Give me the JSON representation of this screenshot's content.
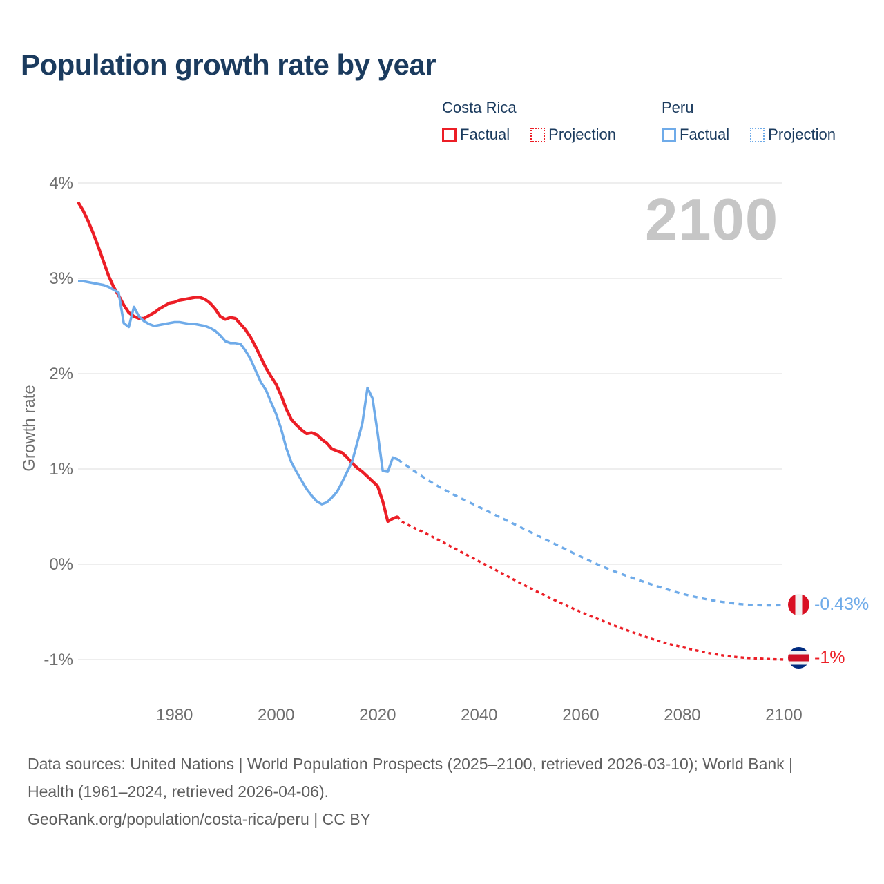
{
  "title": "Population growth rate by year",
  "watermark": "2100",
  "colors": {
    "costa_rica_red": "#ec1e26",
    "peru_blue": "#6fabe9",
    "title_navy": "#1b3b5e",
    "axis_gray": "#6f6f6f",
    "gridline": "#e9e9e9",
    "watermark_gray": "#c6c6c6",
    "footer_gray": "#5e5e5e"
  },
  "legend": {
    "groups": [
      {
        "name": "Costa Rica",
        "color": "#ec1e26",
        "items": [
          {
            "label": "Factual",
            "style": "solid"
          },
          {
            "label": "Projection",
            "style": "dotted"
          }
        ]
      },
      {
        "name": "Peru",
        "color": "#6fabe9",
        "items": [
          {
            "label": "Factual",
            "style": "solid"
          },
          {
            "label": "Projection",
            "style": "dotted"
          }
        ]
      }
    ]
  },
  "footer": {
    "sources": "Data sources: United Nations | World Population Prospects (2025–2100, retrieved 2026-03-10); World Bank | Health (1961–2024, retrieved 2026-04-06).",
    "attribution": "GeoRank.org/population/costa-rica/peru | CC BY"
  },
  "chart_data": {
    "type": "line",
    "title": "Population growth rate by year",
    "xlabel": "",
    "ylabel": "Growth rate",
    "xlim": [
      1961,
      2100
    ],
    "ylim": [
      -1,
      4
    ],
    "grid": "horizontal",
    "legend_position": "top-right",
    "y_ticks": [
      {
        "v": 4,
        "label": "4%"
      },
      {
        "v": 3,
        "label": "3%"
      },
      {
        "v": 2,
        "label": "2%"
      },
      {
        "v": 1,
        "label": "1%"
      },
      {
        "v": 0,
        "label": "0%"
      },
      {
        "v": -1,
        "label": "-1%"
      }
    ],
    "x_ticks": [
      {
        "v": 1980,
        "label": "1980"
      },
      {
        "v": 2000,
        "label": "2000"
      },
      {
        "v": 2020,
        "label": "2020"
      },
      {
        "v": 2040,
        "label": "2040"
      },
      {
        "v": 2060,
        "label": "2060"
      },
      {
        "v": 2080,
        "label": "2080"
      },
      {
        "v": 2100,
        "label": "2100"
      }
    ],
    "series": [
      {
        "id": "costa-rica-factual",
        "name": "Costa Rica Factual",
        "style": "solid",
        "color": "#ec1e26",
        "width": 4.4,
        "points": [
          [
            1961,
            3.8
          ],
          [
            1962,
            3.71
          ],
          [
            1963,
            3.6
          ],
          [
            1964,
            3.47
          ],
          [
            1965,
            3.33
          ],
          [
            1966,
            3.18
          ],
          [
            1967,
            3.03
          ],
          [
            1968,
            2.91
          ],
          [
            1969,
            2.82
          ],
          [
            1970,
            2.72
          ],
          [
            1971,
            2.64
          ],
          [
            1972,
            2.6
          ],
          [
            1973,
            2.58
          ],
          [
            1974,
            2.58
          ],
          [
            1975,
            2.61
          ],
          [
            1976,
            2.64
          ],
          [
            1977,
            2.68
          ],
          [
            1978,
            2.71
          ],
          [
            1979,
            2.74
          ],
          [
            1980,
            2.75
          ],
          [
            1981,
            2.77
          ],
          [
            1982,
            2.78
          ],
          [
            1983,
            2.79
          ],
          [
            1984,
            2.8
          ],
          [
            1985,
            2.8
          ],
          [
            1986,
            2.78
          ],
          [
            1987,
            2.74
          ],
          [
            1988,
            2.68
          ],
          [
            1989,
            2.6
          ],
          [
            1990,
            2.57
          ],
          [
            1991,
            2.59
          ],
          [
            1992,
            2.58
          ],
          [
            1993,
            2.52
          ],
          [
            1994,
            2.46
          ],
          [
            1995,
            2.38
          ],
          [
            1996,
            2.28
          ],
          [
            1997,
            2.17
          ],
          [
            1998,
            2.06
          ],
          [
            1999,
            1.97
          ],
          [
            2000,
            1.89
          ],
          [
            2001,
            1.77
          ],
          [
            2002,
            1.63
          ],
          [
            2003,
            1.52
          ],
          [
            2004,
            1.46
          ],
          [
            2005,
            1.41
          ],
          [
            2006,
            1.37
          ],
          [
            2007,
            1.38
          ],
          [
            2008,
            1.36
          ],
          [
            2009,
            1.31
          ],
          [
            2010,
            1.27
          ],
          [
            2011,
            1.21
          ],
          [
            2012,
            1.19
          ],
          [
            2013,
            1.17
          ],
          [
            2014,
            1.12
          ],
          [
            2015,
            1.06
          ],
          [
            2016,
            1.01
          ],
          [
            2017,
            0.97
          ],
          [
            2018,
            0.92
          ],
          [
            2019,
            0.87
          ],
          [
            2020,
            0.82
          ],
          [
            2021,
            0.66
          ],
          [
            2022,
            0.45
          ],
          [
            2023,
            0.48
          ],
          [
            2024,
            0.5
          ]
        ]
      },
      {
        "id": "costa-rica-projection",
        "name": "Costa Rica Projection",
        "style": "dotted",
        "color": "#ec1e26",
        "width": 3.4,
        "points": [
          [
            2025,
            0.44
          ],
          [
            2030,
            0.31
          ],
          [
            2035,
            0.17
          ],
          [
            2040,
            0.03
          ],
          [
            2045,
            -0.11
          ],
          [
            2050,
            -0.25
          ],
          [
            2055,
            -0.38
          ],
          [
            2060,
            -0.5
          ],
          [
            2065,
            -0.61
          ],
          [
            2070,
            -0.71
          ],
          [
            2075,
            -0.8
          ],
          [
            2080,
            -0.87
          ],
          [
            2085,
            -0.93
          ],
          [
            2090,
            -0.97
          ],
          [
            2095,
            -0.99
          ],
          [
            2100,
            -1.0
          ]
        ]
      },
      {
        "id": "peru-projection",
        "name": "Peru Projection",
        "style": "dotted",
        "color": "#6fabe9",
        "width": 3.4,
        "points": [
          [
            2025,
            1.06
          ],
          [
            2030,
            0.88
          ],
          [
            2035,
            0.73
          ],
          [
            2040,
            0.6
          ],
          [
            2045,
            0.47
          ],
          [
            2050,
            0.34
          ],
          [
            2055,
            0.21
          ],
          [
            2060,
            0.08
          ],
          [
            2065,
            -0.04
          ],
          [
            2070,
            -0.14
          ],
          [
            2075,
            -0.23
          ],
          [
            2080,
            -0.31
          ],
          [
            2085,
            -0.37
          ],
          [
            2090,
            -0.41
          ],
          [
            2095,
            -0.43
          ],
          [
            2100,
            -0.43
          ]
        ]
      },
      {
        "id": "peru-factual",
        "name": "Peru Factual",
        "style": "solid",
        "color": "#6fabe9",
        "width": 3.6,
        "points": [
          [
            1961,
            2.97
          ],
          [
            1962,
            2.97
          ],
          [
            1963,
            2.96
          ],
          [
            1964,
            2.95
          ],
          [
            1965,
            2.94
          ],
          [
            1966,
            2.93
          ],
          [
            1967,
            2.91
          ],
          [
            1968,
            2.88
          ],
          [
            1969,
            2.85
          ],
          [
            1970,
            2.53
          ],
          [
            1971,
            2.49
          ],
          [
            1972,
            2.7
          ],
          [
            1973,
            2.6
          ],
          [
            1974,
            2.55
          ],
          [
            1975,
            2.52
          ],
          [
            1976,
            2.5
          ],
          [
            1977,
            2.51
          ],
          [
            1978,
            2.52
          ],
          [
            1979,
            2.53
          ],
          [
            1980,
            2.54
          ],
          [
            1981,
            2.54
          ],
          [
            1982,
            2.53
          ],
          [
            1983,
            2.52
          ],
          [
            1984,
            2.52
          ],
          [
            1985,
            2.51
          ],
          [
            1986,
            2.5
          ],
          [
            1987,
            2.48
          ],
          [
            1988,
            2.45
          ],
          [
            1989,
            2.4
          ],
          [
            1990,
            2.34
          ],
          [
            1991,
            2.32
          ],
          [
            1992,
            2.32
          ],
          [
            1993,
            2.31
          ],
          [
            1994,
            2.24
          ],
          [
            1995,
            2.15
          ],
          [
            1996,
            2.03
          ],
          [
            1997,
            1.91
          ],
          [
            1998,
            1.83
          ],
          [
            1999,
            1.7
          ],
          [
            2000,
            1.58
          ],
          [
            2001,
            1.42
          ],
          [
            2002,
            1.22
          ],
          [
            2003,
            1.07
          ],
          [
            2004,
            0.97
          ],
          [
            2005,
            0.88
          ],
          [
            2006,
            0.79
          ],
          [
            2007,
            0.72
          ],
          [
            2008,
            0.66
          ],
          [
            2009,
            0.63
          ],
          [
            2010,
            0.65
          ],
          [
            2011,
            0.7
          ],
          [
            2012,
            0.76
          ],
          [
            2013,
            0.86
          ],
          [
            2014,
            0.97
          ],
          [
            2015,
            1.08
          ],
          [
            2016,
            1.28
          ],
          [
            2017,
            1.48
          ],
          [
            2018,
            1.85
          ],
          [
            2019,
            1.74
          ],
          [
            2020,
            1.38
          ],
          [
            2021,
            0.98
          ],
          [
            2022,
            0.97
          ],
          [
            2023,
            1.12
          ],
          [
            2024,
            1.1
          ]
        ]
      }
    ],
    "end_markers": [
      {
        "series": "Peru",
        "flag": "peru",
        "value": -0.43,
        "label": "-0.43%"
      },
      {
        "series": "Costa Rica",
        "flag": "costa-rica",
        "value": -1,
        "label": "-1%"
      }
    ]
  }
}
